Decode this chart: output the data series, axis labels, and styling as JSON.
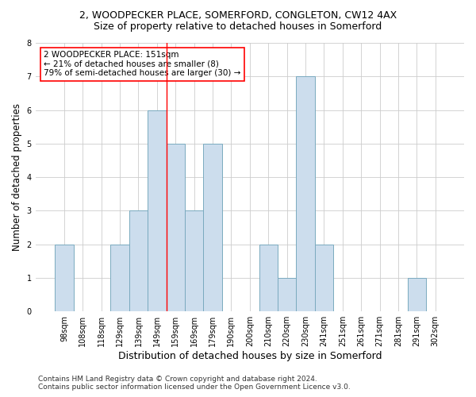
{
  "title": "2, WOODPECKER PLACE, SOMERFORD, CONGLETON, CW12 4AX",
  "subtitle": "Size of property relative to detached houses in Somerford",
  "xlabel": "Distribution of detached houses by size in Somerford",
  "ylabel": "Number of detached properties",
  "categories": [
    "98sqm",
    "108sqm",
    "118sqm",
    "129sqm",
    "139sqm",
    "149sqm",
    "159sqm",
    "169sqm",
    "179sqm",
    "190sqm",
    "200sqm",
    "210sqm",
    "220sqm",
    "230sqm",
    "241sqm",
    "251sqm",
    "261sqm",
    "271sqm",
    "281sqm",
    "291sqm",
    "302sqm"
  ],
  "values": [
    2,
    0,
    0,
    2,
    3,
    6,
    5,
    3,
    5,
    0,
    0,
    2,
    1,
    7,
    2,
    0,
    0,
    0,
    0,
    1,
    0
  ],
  "bar_color": "#ccdded",
  "bar_edgecolor": "#7aaabf",
  "vline_x_index": 5,
  "vline_color": "red",
  "annotation_lines": [
    "2 WOODPECKER PLACE: 151sqm",
    "← 21% of detached houses are smaller (8)",
    "79% of semi-detached houses are larger (30) →"
  ],
  "annotation_box_color": "white",
  "annotation_box_edgecolor": "red",
  "ylim": [
    0,
    8
  ],
  "yticks": [
    0,
    1,
    2,
    3,
    4,
    5,
    6,
    7,
    8
  ],
  "footer_line1": "Contains HM Land Registry data © Crown copyright and database right 2024.",
  "footer_line2": "Contains public sector information licensed under the Open Government Licence v3.0.",
  "bg_color": "white",
  "grid_color": "#cccccc",
  "title_fontsize": 9,
  "subtitle_fontsize": 9,
  "ylabel_fontsize": 8.5,
  "xlabel_fontsize": 9,
  "tick_fontsize": 7,
  "annotation_fontsize": 7.5,
  "footer_fontsize": 6.5
}
